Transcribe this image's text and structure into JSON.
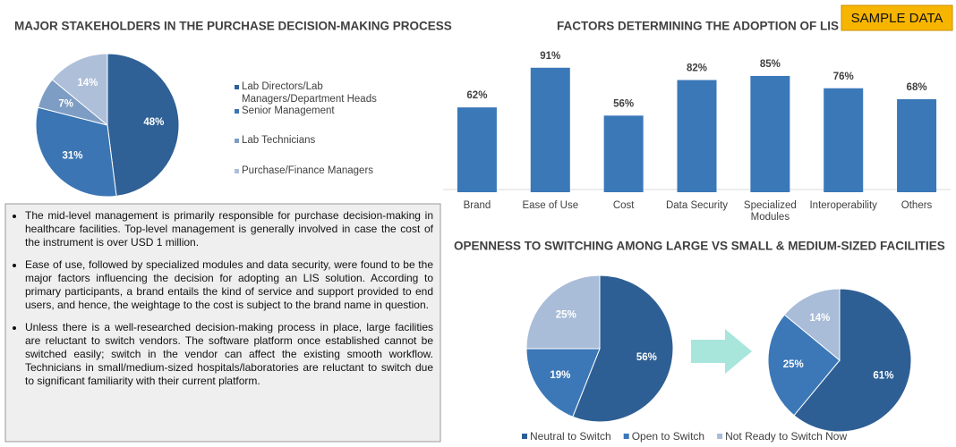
{
  "badge": "SAMPLE DATA",
  "notes": [
    "The mid-level management is primarily responsible for purchase decision-making in healthcare facilities. Top-level management is generally involved in case the cost of the instrument is over USD 1 million.",
    "Ease of use, followed by specialized modules and data security, were found to be the major factors influencing the decision for adopting an LIS solution. According to primary participants, a brand entails the kind of service and support provided to end users, and hence, the weightage to the cost is subject to the brand name in question.",
    "Unless there is a well-researched decision-making process in place, large facilities are reluctant to switch vendors. The software platform once established cannot be switched easily; switch in the vendor can affect the existing smooth workflow. Technicians in small/medium-sized hospitals/laboratories are reluctant to switch due to significant familiarity with their current platform."
  ],
  "chart_data": [
    {
      "type": "pie",
      "title": "MAJOR STAKEHOLDERS IN THE PURCHASE DECISION-MAKING PROCESS",
      "categories": [
        "Lab Directors/Lab Managers/Department Heads",
        "Senior Management",
        "Lab Technicians",
        "Purchase/Finance Managers"
      ],
      "values": [
        48,
        31,
        7,
        14
      ],
      "value_labels": [
        "48%",
        "31%",
        "7%",
        "14%"
      ],
      "colors": [
        "#2f6096",
        "#3b75b3",
        "#7d9dc4",
        "#aebfd9"
      ]
    },
    {
      "type": "bar",
      "title": "FACTORS DETERMINING THE ADOPTION OF LIS",
      "categories": [
        "Brand",
        "Ease of Use",
        "Cost",
        "Data Security",
        "Specialized Modules",
        "Interoperability",
        "Others"
      ],
      "values": [
        62,
        91,
        56,
        82,
        85,
        76,
        68
      ],
      "value_labels": [
        "62%",
        "91%",
        "56%",
        "82%",
        "85%",
        "76%",
        "68%"
      ],
      "color": "#3a78b8",
      "ylim": [
        0,
        100
      ]
    },
    {
      "type": "pie",
      "title": "OPENNESS TO SWITCHING AMONG LARGE VS SMALL & MEDIUM-SIZED FACILITIES",
      "categories": [
        "Neutral to Switch",
        "Open to Switch",
        "Not Ready to Switch Now"
      ],
      "values": [
        56,
        19,
        25
      ],
      "value_labels": [
        "56%",
        "19%",
        "25%"
      ],
      "colors": [
        "#2e5f94",
        "#3c78b8",
        "#a9bcd8"
      ]
    },
    {
      "type": "pie",
      "values": [
        61,
        25,
        14
      ],
      "value_labels": [
        "61%",
        "25%",
        "14%"
      ],
      "colors": [
        "#2e5f94",
        "#3c78b8",
        "#a9bcd8"
      ]
    }
  ]
}
